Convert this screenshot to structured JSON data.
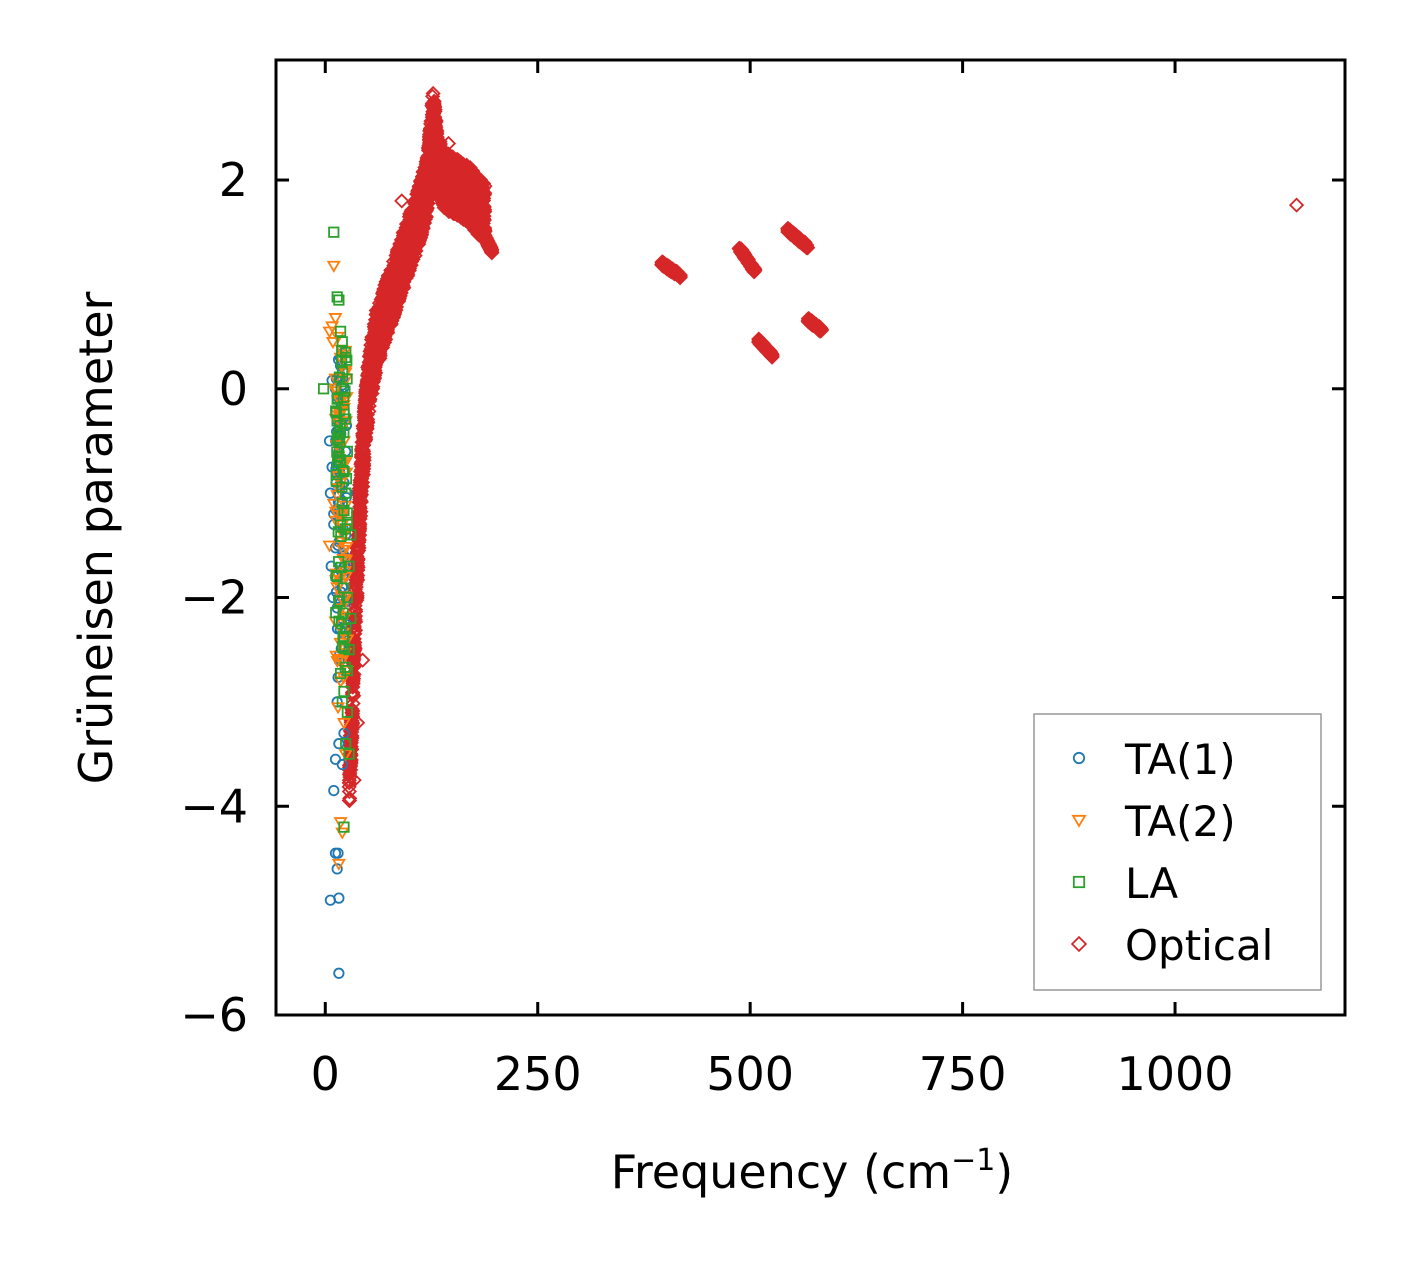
{
  "chart_data": {
    "type": "scatter",
    "title": "",
    "xlabel": "Frequency (cm",
    "xlabel_sup": "−1",
    "xlabel_suffix": ")",
    "ylabel": "Grüneisen parameter",
    "xlim": [
      -58,
      1200
    ],
    "ylim": [
      -6.0,
      3.15
    ],
    "xticks": [
      0,
      250,
      500,
      750,
      1000
    ],
    "xtick_labels": [
      "0",
      "250",
      "500",
      "750",
      "1000"
    ],
    "yticks": [
      2,
      0,
      -2,
      -4,
      -6
    ],
    "ytick_labels": [
      "2",
      "0",
      "−2",
      "−4",
      "−6"
    ],
    "legend_position": "lower-right",
    "series": [
      {
        "name": "TA(1)",
        "marker": "circle",
        "color": "#1f77b4",
        "points": [
          [
            8,
            0.08
          ],
          [
            12,
            0.0
          ],
          [
            5,
            -0.5
          ],
          [
            8,
            -0.75
          ],
          [
            6,
            -1.0
          ],
          [
            10,
            -1.2
          ],
          [
            7,
            -1.7
          ],
          [
            9,
            -2.0
          ],
          [
            12,
            -1.8
          ],
          [
            15,
            -1.5
          ],
          [
            18,
            -1.2
          ],
          [
            20,
            -1.1
          ],
          [
            22,
            -0.9
          ],
          [
            16,
            -0.6
          ],
          [
            14,
            -0.3
          ],
          [
            18,
            -0.45
          ],
          [
            20,
            -0.35
          ],
          [
            24,
            -0.6
          ],
          [
            22,
            -1.6
          ],
          [
            20,
            -2.2
          ],
          [
            18,
            -2.6
          ],
          [
            14,
            -3.0
          ],
          [
            16,
            -3.4
          ],
          [
            12,
            -3.55
          ],
          [
            20,
            -3.6
          ],
          [
            22,
            -3.3
          ],
          [
            10,
            -3.85
          ],
          [
            12,
            -4.45
          ],
          [
            15,
            -4.45
          ],
          [
            14,
            -4.6
          ],
          [
            6,
            -4.9
          ],
          [
            16,
            -4.88
          ],
          [
            16,
            -5.6
          ],
          [
            20,
            -1.9
          ],
          [
            24,
            -1.4
          ],
          [
            26,
            -1.0
          ],
          [
            18,
            0.22
          ],
          [
            10,
            -1.3
          ],
          [
            14,
            -2.1
          ],
          [
            19,
            -1.75
          ],
          [
            17,
            -0.8
          ]
        ]
      },
      {
        "name": "TA(2)",
        "marker": "triangle-down",
        "color": "#ff7f0e",
        "points": [
          [
            10,
            1.18
          ],
          [
            5,
            0.55
          ],
          [
            8,
            0.6
          ],
          [
            12,
            0.68
          ],
          [
            15,
            0.5
          ],
          [
            9,
            0.45
          ],
          [
            18,
            0.3
          ],
          [
            12,
            0.1
          ],
          [
            20,
            -0.1
          ],
          [
            22,
            -0.5
          ],
          [
            18,
            -0.9
          ],
          [
            10,
            -1.1
          ],
          [
            20,
            -1.3
          ],
          [
            5,
            -1.5
          ],
          [
            24,
            -1.8
          ],
          [
            22,
            -2.2
          ],
          [
            20,
            -2.6
          ],
          [
            18,
            -2.8
          ],
          [
            15,
            -3.05
          ],
          [
            22,
            -3.2
          ],
          [
            24,
            -3.5
          ],
          [
            18,
            -4.15
          ],
          [
            20,
            -4.25
          ],
          [
            16,
            -4.55
          ],
          [
            26,
            -2.4
          ],
          [
            14,
            -1.9
          ],
          [
            24,
            -0.7
          ]
        ]
      },
      {
        "name": "LA",
        "marker": "square",
        "color": "#2ca02c",
        "points": [
          [
            -2,
            0.0
          ],
          [
            10,
            1.5
          ],
          [
            14,
            0.88
          ],
          [
            16,
            0.85
          ],
          [
            18,
            0.55
          ],
          [
            20,
            0.45
          ],
          [
            24,
            0.3
          ],
          [
            22,
            -0.2
          ],
          [
            26,
            -0.6
          ],
          [
            24,
            -1.0
          ],
          [
            26,
            -1.3
          ],
          [
            28,
            -1.7
          ],
          [
            26,
            -2.0
          ],
          [
            24,
            -2.3
          ],
          [
            28,
            -2.5
          ],
          [
            26,
            -2.7
          ],
          [
            22,
            -2.9
          ],
          [
            26,
            -3.1
          ],
          [
            28,
            -3.5
          ],
          [
            24,
            -3.4
          ],
          [
            22,
            -4.2
          ],
          [
            20,
            -3.0
          ],
          [
            30,
            -2.2
          ],
          [
            30,
            -1.4
          ]
        ]
      },
      {
        "name": "Optical",
        "marker": "diamond",
        "color": "#d62728",
        "trend": [
          [
            28,
            -3.8
          ],
          [
            32,
            -3.0
          ],
          [
            36,
            -2.0
          ],
          [
            40,
            -1.2
          ],
          [
            46,
            -0.4
          ],
          [
            52,
            0.1
          ],
          [
            60,
            0.45
          ],
          [
            70,
            0.72
          ],
          [
            80,
            0.95
          ],
          [
            95,
            1.3
          ],
          [
            110,
            1.65
          ],
          [
            120,
            1.95
          ],
          [
            124,
            2.3
          ],
          [
            127,
            2.6
          ],
          [
            132,
            2.15
          ],
          [
            140,
            2.0
          ],
          [
            150,
            1.95
          ],
          [
            160,
            1.9
          ],
          [
            170,
            1.85
          ],
          [
            180,
            1.75
          ],
          [
            188,
            1.7
          ]
        ],
        "clusters": [
          {
            "x": [
              186,
              196
            ],
            "y": [
              1.32,
              1.48
            ]
          },
          {
            "x": [
              396,
              418
            ],
            "y": [
              1.08,
              1.2
            ]
          },
          {
            "x": [
              487,
              506
            ],
            "y": [
              1.12,
              1.35
            ]
          },
          {
            "x": [
              510,
              526
            ],
            "y": [
              0.32,
              0.46
            ]
          },
          {
            "x": [
              544,
              568
            ],
            "y": [
              1.36,
              1.52
            ]
          },
          {
            "x": [
              568,
              584
            ],
            "y": [
              0.56,
              0.66
            ]
          }
        ],
        "points": [
          [
            1143,
            1.76
          ],
          [
            128,
            2.72
          ],
          [
            34,
            -3.75
          ],
          [
            38,
            -3.2
          ],
          [
            44,
            -2.6
          ],
          [
            30,
            -3.5
          ],
          [
            60,
            0.75
          ],
          [
            90,
            1.8
          ],
          [
            145,
            2.35
          ]
        ]
      }
    ]
  }
}
